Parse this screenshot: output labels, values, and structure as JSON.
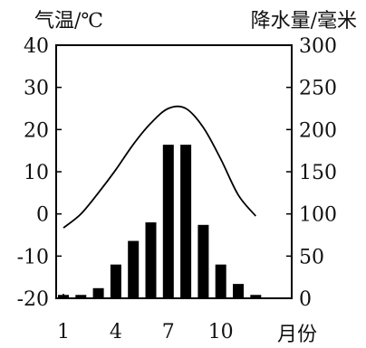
{
  "chart_data": {
    "type": "bar",
    "left_axis_title": "气温/℃",
    "right_axis_title": "降水量/毫米",
    "x_axis_title": "月份",
    "x_tick_labels": [
      "1",
      "4",
      "7",
      "10"
    ],
    "x_tick_months": [
      1,
      4,
      7,
      10
    ],
    "months": [
      1,
      2,
      3,
      4,
      5,
      6,
      7,
      8,
      9,
      10,
      11,
      12
    ],
    "temperature_ylim": [
      -20,
      40
    ],
    "temperature_ticks": [
      "40",
      "30",
      "20",
      "10",
      "0",
      "-10",
      "-20"
    ],
    "temperature_tick_values": [
      40,
      30,
      20,
      10,
      0,
      -10,
      -20
    ],
    "precipitation_ylim": [
      0,
      300
    ],
    "precipitation_ticks": [
      "300",
      "250",
      "200",
      "150",
      "100",
      "50",
      "0"
    ],
    "precipitation_tick_values": [
      300,
      250,
      200,
      150,
      100,
      50,
      0
    ],
    "series": [
      {
        "type": "line",
        "axis": "left",
        "values": [
          -3.3,
          0,
          5,
          10.5,
          16.5,
          21.5,
          25,
          25,
          20.5,
          13,
          4.5,
          -0.5
        ]
      },
      {
        "type": "bar",
        "axis": "right",
        "values": [
          4,
          4,
          12,
          40,
          68,
          90,
          182,
          182,
          87,
          40,
          17,
          4
        ]
      }
    ],
    "colors": {
      "bars": "#000000",
      "line": "#000000",
      "frame": "#000000"
    }
  }
}
